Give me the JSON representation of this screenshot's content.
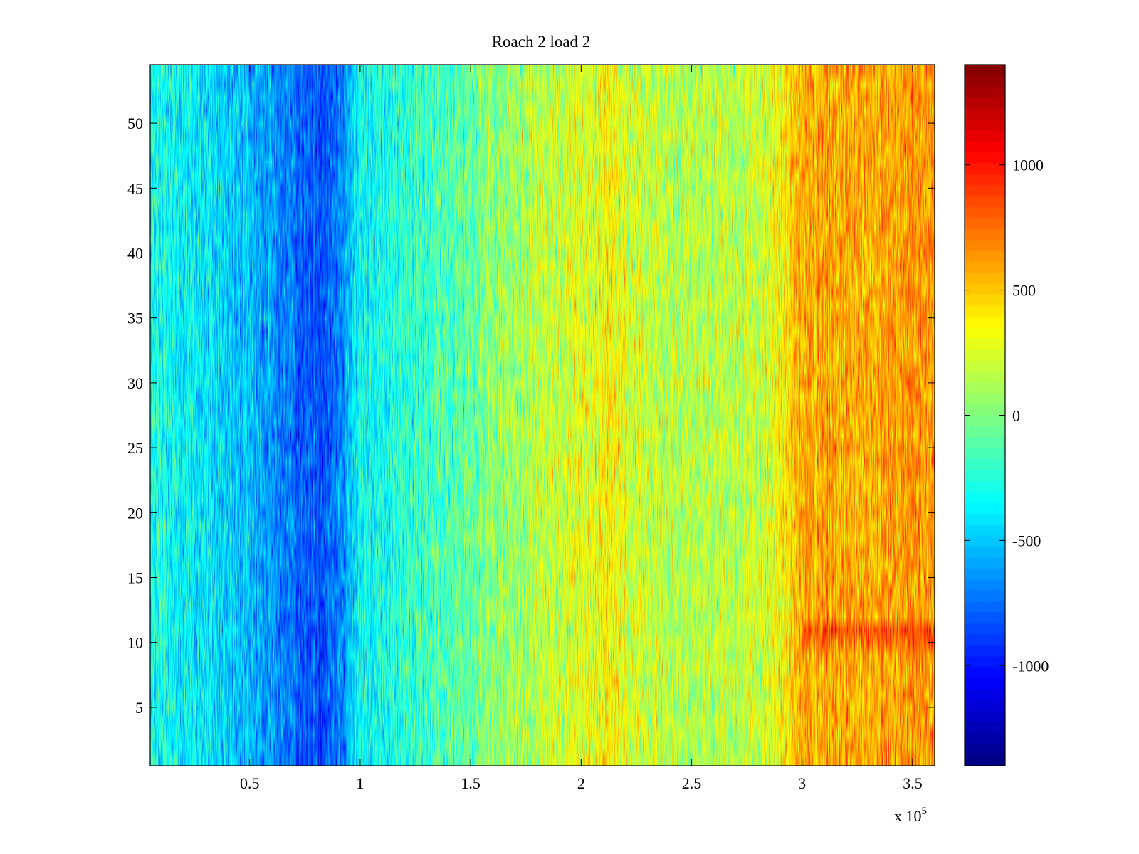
{
  "chart_data": {
    "type": "heatmap",
    "title": "Roach 2 load 2",
    "xlabel": "",
    "ylabel": "",
    "x_multiplier_label": "x 10",
    "x_multiplier_exponent": "5",
    "xlim": [
      0.05,
      3.6
    ],
    "ylim": [
      0.5,
      54.5
    ],
    "x_ticks": [
      {
        "value": 0.5,
        "label": "0.5"
      },
      {
        "value": 1,
        "label": "1"
      },
      {
        "value": 1.5,
        "label": "1.5"
      },
      {
        "value": 2,
        "label": "2"
      },
      {
        "value": 2.5,
        "label": "2.5"
      },
      {
        "value": 3,
        "label": "3"
      },
      {
        "value": 3.5,
        "label": "3.5"
      }
    ],
    "y_ticks": [
      {
        "value": 5,
        "label": "5"
      },
      {
        "value": 10,
        "label": "10"
      },
      {
        "value": 15,
        "label": "15"
      },
      {
        "value": 20,
        "label": "20"
      },
      {
        "value": 25,
        "label": "25"
      },
      {
        "value": 30,
        "label": "30"
      },
      {
        "value": 35,
        "label": "35"
      },
      {
        "value": 40,
        "label": "40"
      },
      {
        "value": 45,
        "label": "45"
      },
      {
        "value": 50,
        "label": "50"
      }
    ],
    "rows": 54,
    "colorbar": {
      "colormap": "jet",
      "clim": [
        -1400,
        1400
      ],
      "ticks": [
        {
          "value": 1000,
          "label": "1000"
        },
        {
          "value": 500,
          "label": "500"
        },
        {
          "value": 0,
          "label": "0"
        },
        {
          "value": -500,
          "label": "-500"
        },
        {
          "value": -1000,
          "label": "-1000"
        }
      ]
    },
    "column_trend": {
      "x": [
        0.05,
        0.3,
        0.5,
        0.6,
        0.7,
        0.8,
        0.9,
        1.0,
        1.2,
        1.5,
        1.8,
        2.0,
        2.1,
        2.3,
        2.5,
        2.8,
        2.9,
        3.0,
        3.1,
        3.3,
        3.5,
        3.6
      ],
      "value": [
        -300,
        -400,
        -550,
        -650,
        -750,
        -850,
        -700,
        -350,
        -250,
        -50,
        150,
        250,
        350,
        200,
        150,
        200,
        350,
        550,
        600,
        550,
        650,
        600
      ]
    },
    "highlight_rows": [
      {
        "y": 11,
        "x_from": 3.0,
        "x_to": 3.6,
        "delta": 250
      },
      {
        "y": 10,
        "x_from": 3.0,
        "x_to": 3.6,
        "delta": 150
      }
    ],
    "noise_amplitude": 420
  }
}
